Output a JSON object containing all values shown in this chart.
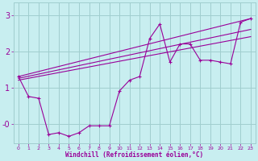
{
  "background_color": "#c8eef0",
  "grid_color": "#a0cece",
  "line_color": "#990099",
  "xlabel": "Windchill (Refroidissement éolien,°C)",
  "xlim": [
    -0.5,
    23.5
  ],
  "ylim": [
    -0.55,
    3.35
  ],
  "yticks": [
    0,
    1,
    2,
    3
  ],
  "ytick_labels": [
    "0",
    "1",
    "2",
    "3"
  ],
  "xticks": [
    0,
    1,
    2,
    3,
    4,
    5,
    6,
    7,
    8,
    9,
    10,
    11,
    12,
    13,
    14,
    15,
    16,
    17,
    18,
    19,
    20,
    21,
    22,
    23
  ],
  "main_x": [
    0,
    1,
    2,
    3,
    4,
    5,
    6,
    7,
    8,
    9,
    10,
    11,
    12,
    13,
    14,
    15,
    16,
    17,
    18,
    19,
    20,
    21,
    22,
    23
  ],
  "main_y": [
    1.3,
    0.75,
    0.7,
    -0.3,
    -0.25,
    -0.35,
    -0.25,
    -0.06,
    -0.06,
    -0.06,
    0.9,
    1.2,
    1.3,
    2.35,
    2.75,
    1.7,
    2.2,
    2.2,
    1.75,
    1.75,
    1.7,
    1.65,
    2.8,
    2.9
  ],
  "trend_lines": [
    {
      "x0": 0,
      "y0": 1.3,
      "x1": 23,
      "y1": 2.9
    },
    {
      "x0": 0,
      "y0": 1.25,
      "x1": 23,
      "y1": 2.6
    },
    {
      "x0": 0,
      "y0": 1.2,
      "x1": 23,
      "y1": 2.4
    }
  ],
  "neg_zero_y": -0.06,
  "neg_zero_label": "-0"
}
